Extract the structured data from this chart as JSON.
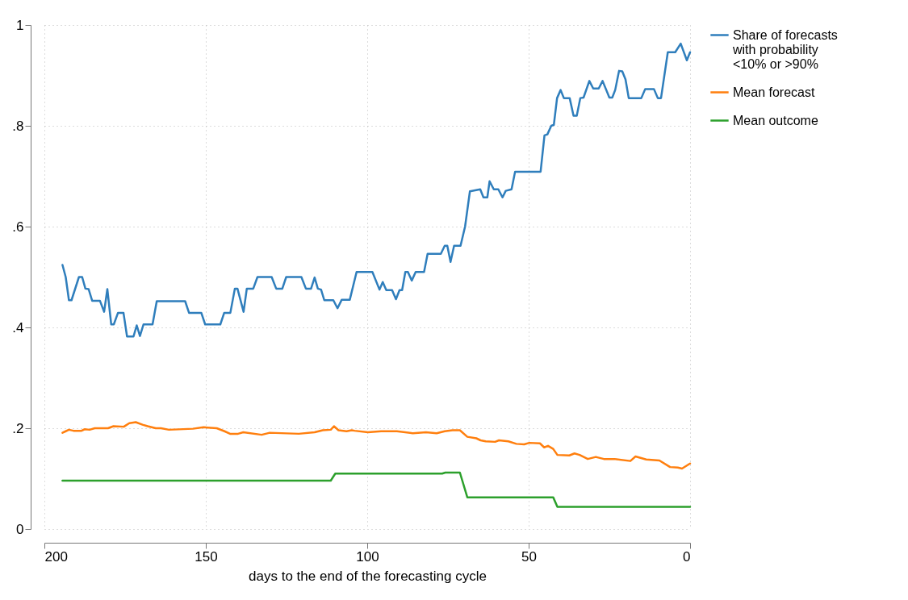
{
  "chart_data": {
    "type": "line",
    "xlabel": "days to the end of the forecasting cycle",
    "xlim": [
      200,
      0
    ],
    "xticks": [
      200,
      150,
      100,
      50,
      0
    ],
    "ylim": [
      0,
      1
    ],
    "yticks": [
      0,
      {
        "value": 0.2,
        "label": ".2"
      },
      {
        "value": 0.4,
        "label": ".4"
      },
      {
        "value": 0.6,
        "label": ".6"
      },
      {
        "value": 0.8,
        "label": ".8"
      },
      1
    ],
    "grid": true,
    "legend": "right",
    "series": [
      {
        "name": "Share of forecasts with probability <10% or >90%",
        "color": "#2f7ebc",
        "x": [
          194.4,
          193.4,
          192.4,
          191.6,
          189.3,
          188.3,
          187.3,
          186.3,
          185.2,
          182.8,
          181.5,
          180.5,
          179.3,
          178.5,
          177.2,
          175.5,
          174.4,
          172.4,
          171.4,
          170.4,
          169.3,
          166.5,
          165.2,
          156.4,
          155.2,
          151.4,
          150.2,
          145.5,
          144.3,
          142.4,
          141.0,
          140.2,
          138.3,
          137.3,
          135.3,
          134.0,
          129.6,
          128.2,
          126.3,
          125.1,
          120.4,
          119.0,
          117.4,
          116.3,
          115.3,
          114.3,
          113.3,
          110.5,
          109.2,
          107.9,
          105.4,
          103.3,
          98.4,
          96.2,
          95.2,
          94.1,
          92.3,
          91.1,
          90.0,
          89.2,
          88.2,
          87.4,
          86.2,
          85.0,
          82.4,
          81.3,
          77.2,
          76.0,
          75.2,
          74.2,
          73.1,
          71.1,
          69.7,
          68.2,
          65.0,
          64.0,
          62.8,
          62.1,
          60.8,
          59.4,
          58.1,
          57.1,
          55.3,
          54.2,
          46.3,
          45.1,
          44.2,
          43.0,
          42.2,
          41.2,
          40.1,
          39.1,
          37.3,
          36.1,
          35.1,
          34.0,
          33.0,
          31.2,
          30.0,
          28.3,
          27.1,
          25.0,
          24.1,
          23.2,
          22.0,
          21.0,
          20.0,
          19.0,
          15.1,
          13.9,
          11.2,
          10.0,
          9.0,
          6.9,
          4.6,
          2.9,
          1.0,
          0
        ],
        "values": [
          0.524,
          0.5,
          0.454,
          0.454,
          0.5,
          0.5,
          0.477,
          0.476,
          0.453,
          0.453,
          0.431,
          0.476,
          0.406,
          0.406,
          0.429,
          0.429,
          0.382,
          0.382,
          0.404,
          0.383,
          0.406,
          0.406,
          0.452,
          0.452,
          0.429,
          0.429,
          0.406,
          0.406,
          0.429,
          0.429,
          0.477,
          0.477,
          0.431,
          0.477,
          0.477,
          0.5,
          0.5,
          0.477,
          0.477,
          0.5,
          0.5,
          0.477,
          0.477,
          0.499,
          0.477,
          0.475,
          0.454,
          0.454,
          0.438,
          0.455,
          0.455,
          0.51,
          0.51,
          0.475,
          0.49,
          0.474,
          0.474,
          0.456,
          0.474,
          0.474,
          0.51,
          0.51,
          0.493,
          0.51,
          0.51,
          0.546,
          0.546,
          0.562,
          0.562,
          0.53,
          0.562,
          0.562,
          0.6,
          0.67,
          0.674,
          0.658,
          0.658,
          0.69,
          0.674,
          0.674,
          0.658,
          0.671,
          0.674,
          0.709,
          0.709,
          0.781,
          0.783,
          0.8,
          0.802,
          0.855,
          0.871,
          0.855,
          0.855,
          0.82,
          0.82,
          0.855,
          0.856,
          0.889,
          0.874,
          0.874,
          0.889,
          0.856,
          0.856,
          0.871,
          0.909,
          0.908,
          0.892,
          0.855,
          0.855,
          0.873,
          0.873,
          0.855,
          0.855,
          0.946,
          0.946,
          0.963,
          0.93,
          0.946
        ]
      },
      {
        "name": "Mean forecast",
        "color": "#ff7f0e",
        "x": [
          194.4,
          193.4,
          192.4,
          191,
          188.5,
          187.5,
          186,
          184.4,
          180.3,
          178.6,
          175.4,
          173.7,
          171.7,
          169.6,
          168,
          165.5,
          163.9,
          161.4,
          154,
          150.7,
          146.6,
          144.2,
          142.5,
          140,
          138.4,
          132.7,
          130.2,
          121.2,
          116.3,
          113.8,
          111.3,
          110.3,
          108.9,
          106.4,
          104.8,
          103.9,
          99.8,
          95.7,
          90.8,
          85.9,
          81.8,
          78.5,
          76,
          73.6,
          71.3,
          69.0,
          66.2,
          64.9,
          63.3,
          60.4,
          59.2,
          56.3,
          53.8,
          51.4,
          49.8,
          46.5,
          45.2,
          44.0,
          42.4,
          41.1,
          37.4,
          35.8,
          34.2,
          31.7,
          29.2,
          26.7,
          23.4,
          18.5,
          16.9,
          13.6,
          9.5,
          6.2,
          3.8,
          2.5,
          0
        ],
        "values": [
          0.191,
          0.194,
          0.197,
          0.195,
          0.195,
          0.198,
          0.197,
          0.2,
          0.2,
          0.204,
          0.203,
          0.21,
          0.212,
          0.207,
          0.204,
          0.2,
          0.2,
          0.197,
          0.199,
          0.202,
          0.2,
          0.194,
          0.189,
          0.189,
          0.192,
          0.187,
          0.191,
          0.189,
          0.192,
          0.196,
          0.197,
          0.204,
          0.196,
          0.194,
          0.196,
          0.195,
          0.192,
          0.194,
          0.194,
          0.19,
          0.192,
          0.19,
          0.194,
          0.196,
          0.196,
          0.183,
          0.18,
          0.176,
          0.174,
          0.173,
          0.176,
          0.174,
          0.169,
          0.168,
          0.171,
          0.17,
          0.162,
          0.165,
          0.159,
          0.147,
          0.146,
          0.15,
          0.147,
          0.139,
          0.143,
          0.139,
          0.139,
          0.135,
          0.144,
          0.138,
          0.136,
          0.123,
          0.122,
          0.12,
          0.13
        ]
      },
      {
        "name": "Mean outcome",
        "color": "#2ca02c",
        "x": [
          194.4,
          111.3,
          109.9,
          76.8,
          75.8,
          71.3,
          69.0,
          42.4,
          41.1,
          0
        ],
        "values": [
          0.096,
          0.096,
          0.11,
          0.11,
          0.112,
          0.112,
          0.063,
          0.063,
          0.044,
          0.044
        ]
      }
    ]
  }
}
